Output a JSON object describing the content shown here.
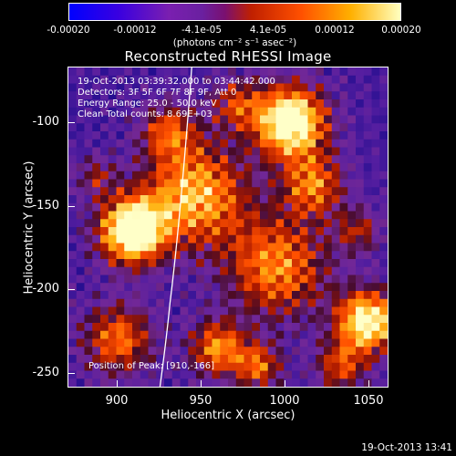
{
  "colorbar": {
    "ticks": [
      "-0.00020",
      "-0.00012",
      "-4.1e-05",
      "4.1e-05",
      "0.00012",
      "0.00020"
    ],
    "units": "(photons cm⁻² s⁻¹ asec⁻²)"
  },
  "title": "Reconstructed RHESSI Image",
  "info": {
    "time_range": "19-Oct-2013 03:39:32.000 to 03:44:42.000",
    "detectors": "Detectors: 3F 5F 6F 7F 8F 9F, Att 0",
    "energy": "Energy Range: 25.0 - 50.0 keV",
    "clean": "Clean    Total counts: 8.69E+03"
  },
  "peak_label": "Position of Peak: [910,-166]",
  "axes": {
    "xlabel": "Heliocentric X (arcsec)",
    "ylabel": "Heliocentric Y (arcsec)",
    "xticks": [
      "900",
      "950",
      "1000",
      "1050"
    ],
    "yticks": [
      "-100",
      "-150",
      "-200",
      "-250"
    ]
  },
  "timestamp": "19-Oct-2013 13:41",
  "colors": {
    "background": "#000000",
    "cmap_low": "#0000ff",
    "cmap_mid": "#6a20a0",
    "cmap_high": "#ffffc0",
    "limb_line": "#ffffff"
  }
}
